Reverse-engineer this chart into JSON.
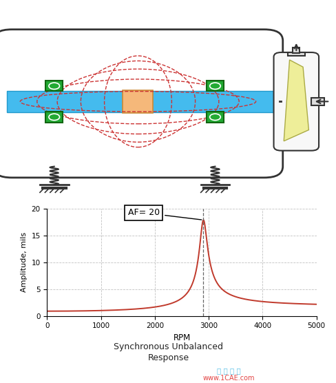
{
  "fig_width": 4.89,
  "fig_height": 5.56,
  "dpi": 100,
  "bg_color": "#ffffff",
  "rpm_peak": 2900,
  "amplitude_peak": 17.0,
  "ylim": [
    0,
    20
  ],
  "xlim": [
    0,
    5000
  ],
  "yticks": [
    0,
    5,
    10,
    15,
    20
  ],
  "xticks": [
    0,
    1000,
    2000,
    3000,
    4000,
    5000
  ],
  "ylabel": "Amplitude, mils",
  "xlabel": "RPM",
  "annotation_text": "AF= 20",
  "subtitle1": "Synchronous Unbalanced",
  "subtitle2": "Response",
  "plot_line_color": "#c0392b",
  "dashed_line_color": "#666666",
  "grid_color": "#bbbbbb",
  "vessel_fill": "#ffffff",
  "vessel_edge": "#333333",
  "shaft_fill": "#44bbee",
  "shaft_edge": "#2299cc",
  "disk_fill": "#f5b87a",
  "disk_edge": "#cc8833",
  "bearing_fill": "#22aa33",
  "bearing_edge": "#116611",
  "ellipse_color": "#cc3333",
  "spring_color": "#333333",
  "motor_fill": "#f8f8f8",
  "motor_edge": "#333333",
  "impeller_fill": "#eeee99",
  "impeller_edge": "#aaaa44",
  "watermark1": "仿 真 在 线",
  "watermark2": "www.1CAE.com",
  "watermark1_color": "#22aadd",
  "watermark2_color": "#dd2222"
}
